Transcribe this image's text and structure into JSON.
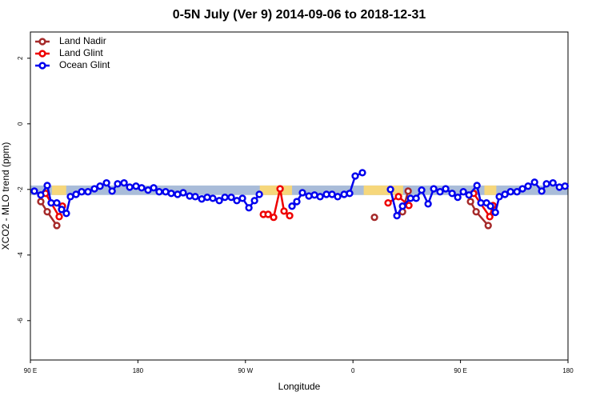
{
  "chart_data": {
    "type": "line",
    "title": "0-5N July (Ver 9)   2014-09-06 to 2018-12-31",
    "x_label": "Longitude",
    "y_label": "XCO2 - MLO trend (ppm)",
    "xlim": [
      90,
      540
    ],
    "ylim": [
      -7.2,
      2.8
    ],
    "xticks": [
      {
        "value": 90,
        "label": "90 E"
      },
      180,
      {
        "value": 270,
        "label": "90 W"
      },
      {
        "value": 360,
        "label": "0"
      },
      {
        "value": 450,
        "label": "90 E"
      },
      {
        "value": 540,
        "label": "180"
      }
    ],
    "yticks": [
      -6,
      -4,
      -2,
      0,
      2
    ],
    "legend": "top-left",
    "band": {
      "ylim": [
        -2.17,
        -1.88
      ],
      "color": "#a9bcd9",
      "highlight_color": "#f6d77b",
      "highlights": [
        [
          108,
          120
        ],
        [
          282,
          309
        ],
        [
          369,
          402
        ],
        [
          470,
          480
        ]
      ]
    },
    "series": [
      {
        "name": "Land Nadir",
        "color": "#a52a2a",
        "x": [
          98.7,
          104.1,
          112.1,
          null,
          378,
          null,
          401.5,
          406.2,
          null,
          458.4,
          463.1,
          473.2
        ],
        "values": [
          -2.37,
          -2.68,
          -3.1,
          null,
          -2.85,
          null,
          -2.68,
          -2.05,
          null,
          -2.37,
          -2.68,
          -3.1
        ]
      },
      {
        "name": "Land Glint",
        "color": "#ee0000",
        "x": [
          102.7,
          114.1,
          116.8,
          null,
          285,
          289,
          293.6,
          299,
          302.3,
          307,
          null,
          389.4,
          398.1,
          406.8,
          null,
          461,
          474.5,
          477.2
        ],
        "values": [
          -2.12,
          -2.83,
          -2.51,
          null,
          -2.76,
          -2.76,
          -2.85,
          -1.98,
          -2.66,
          -2.8,
          null,
          -2.41,
          -2.22,
          -2.49,
          null,
          -2.12,
          -2.83,
          -2.49
        ]
      },
      {
        "name": "Ocean Glint",
        "color": "#0000ee",
        "x": [
          93.3,
          98.7,
          104.1,
          107.4,
          112.1,
          116.1,
          120.1,
          123.5,
          128.2,
          132.9,
          138.2,
          143.6,
          148.3,
          153.7,
          158.4,
          163.0,
          168.4,
          173.1,
          178.4,
          183.1,
          188.5,
          193.2,
          197.8,
          203.2,
          207.9,
          213.2,
          217.9,
          223.3,
          228.0,
          233.4,
          238.0,
          242.7,
          248.1,
          252.8,
          258.1,
          262.8,
          267.5,
          272.9,
          277.6,
          281.6,
          null,
          309.0,
          313.0,
          317.7,
          323.1,
          327.8,
          332.5,
          337.8,
          342.5,
          347.2,
          352.6,
          357.2,
          361.9,
          367.9,
          null,
          391.4,
          396.8,
          401.5,
          408.2,
          412.9,
          417.5,
          422.9,
          427.6,
          432.9,
          437.6,
          443.0,
          447.7,
          452.4,
          457.1,
          463.8,
          467.1,
          471.8,
          475.1,
          479.2,
          482.5,
          487.2,
          491.9,
          497.3,
          501.9,
          506.6,
          512.0,
          518.0,
          522.0,
          527.4,
          532.8,
          537.5
        ],
        "values": [
          -2.05,
          -2.17,
          -1.88,
          -2.41,
          -2.41,
          -2.61,
          -2.73,
          -2.22,
          -2.15,
          -2.07,
          -2.07,
          -1.98,
          -1.9,
          -1.8,
          -2.05,
          -1.83,
          -1.8,
          -1.93,
          -1.9,
          -1.95,
          -2.02,
          -1.95,
          -2.07,
          -2.07,
          -2.12,
          -2.15,
          -2.1,
          -2.2,
          -2.22,
          -2.29,
          -2.24,
          -2.27,
          -2.34,
          -2.24,
          -2.24,
          -2.34,
          -2.27,
          -2.56,
          -2.34,
          -2.15,
          null,
          -2.51,
          -2.37,
          -2.1,
          -2.2,
          -2.17,
          -2.22,
          -2.15,
          -2.15,
          -2.22,
          -2.15,
          -2.12,
          -1.59,
          -1.49,
          null,
          -2.0,
          -2.8,
          -2.51,
          -2.27,
          -2.27,
          -2.02,
          -2.44,
          -1.98,
          -2.07,
          -1.98,
          -2.12,
          -2.24,
          -2.07,
          -2.17,
          -1.88,
          -2.41,
          -2.41,
          -2.51,
          -2.7,
          -2.22,
          -2.15,
          -2.07,
          -2.07,
          -1.98,
          -1.9,
          -1.78,
          -2.05,
          -1.83,
          -1.8,
          -1.93,
          -1.9
        ]
      }
    ]
  }
}
